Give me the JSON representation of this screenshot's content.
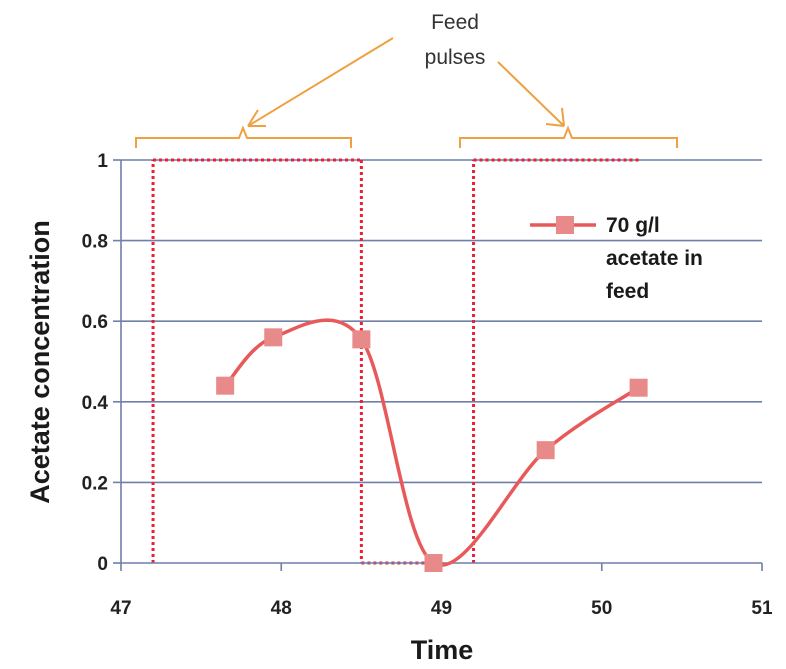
{
  "chart_data": {
    "type": "line",
    "xlabel": "Time",
    "ylabel": "Acetate concentration",
    "xlim": [
      47,
      51
    ],
    "ylim": [
      0,
      1
    ],
    "x_ticks": [
      "47",
      "48",
      "49",
      "50",
      "51"
    ],
    "y_ticks": [
      "0",
      "0.2",
      "0.4",
      "0.6",
      "0.8",
      "1"
    ],
    "grid": "horizontal",
    "legend_position": "right",
    "legend": {
      "line1": "70 g/l",
      "line2": "acetate in",
      "line3": "feed"
    },
    "series": [
      {
        "name": "70 g/l acetate in feed",
        "color": "#e85a5a",
        "marker_color": "#e88a8a",
        "smooth": true,
        "x": [
          47.65,
          47.95,
          48.5,
          48.95,
          49.65,
          50.23
        ],
        "y": [
          0.44,
          0.56,
          0.555,
          0.0,
          0.28,
          0.435
        ]
      }
    ],
    "feed_pulses": [
      {
        "start": 47.2,
        "end": 48.5,
        "level": 1
      },
      {
        "start": 49.2,
        "end": 50.23,
        "level": 1
      }
    ],
    "annotation": {
      "line1": "Feed",
      "line2": "pulses",
      "color": "#f0a040"
    }
  }
}
